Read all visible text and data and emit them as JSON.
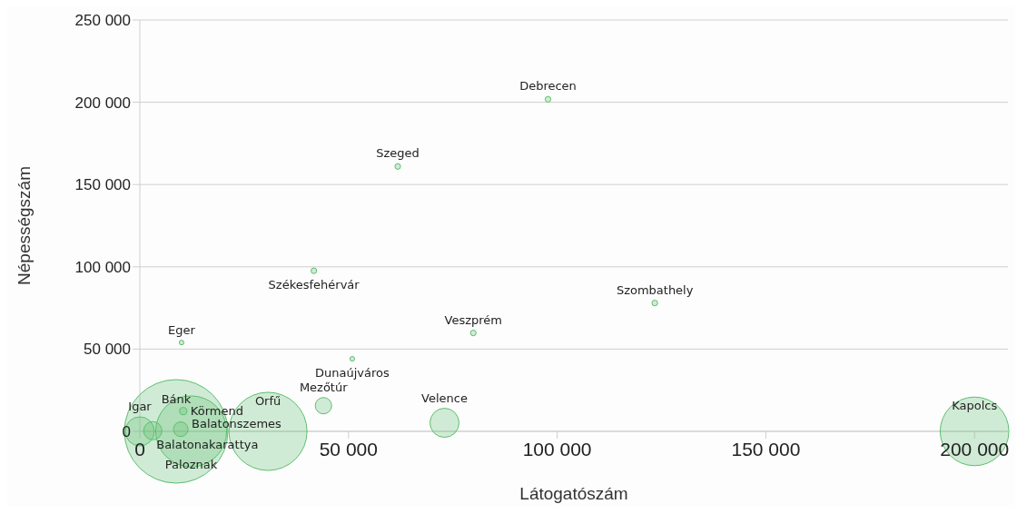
{
  "chart_data": {
    "type": "bubble",
    "xlabel": "Látogatószám",
    "ylabel": "Népességszám",
    "series": [
      {
        "color": "#5cbf6e",
        "x": [
          97800,
          61800,
          41700,
          10000,
          50900,
          79900,
          123400,
          200000,
          73000,
          44000,
          30700,
          8700,
          12300,
          10400,
          9800,
          3100,
          0
        ],
        "values": [
          201800,
          161000,
          97600,
          54000,
          44100,
          59800,
          78000,
          0,
          5200,
          15600,
          0,
          0,
          0,
          12300,
          1300,
          400,
          0
        ],
        "sizes": [
          0.003,
          0.003,
          0.003,
          0.002,
          0.002,
          0.003,
          0.003,
          0.44,
          0.079,
          0.025,
          0.57,
          1,
          0.47,
          0.005,
          0.02,
          0.031,
          0.079
        ]
      }
    ],
    "annotations": [
      {
        "text": "Debrecen",
        "x": 97800,
        "y": 201800
      },
      {
        "text": "Szeged",
        "x": 61800,
        "y": 161000
      },
      {
        "text": "Székesfehérvár",
        "x": 41700,
        "y": 97600
      },
      {
        "text": "Eger",
        "x": 10000,
        "y": 54000
      },
      {
        "text": "Dunaújváros",
        "x": 50900,
        "y": 44100
      },
      {
        "text": "Veszprém",
        "x": 79900,
        "y": 59800
      },
      {
        "text": "Szombathely",
        "x": 123400,
        "y": 78000
      },
      {
        "text": "Kapolcs",
        "x": 200000,
        "y": 0
      },
      {
        "text": "Velence",
        "x": 73000,
        "y": 5200
      },
      {
        "text": "Mezőtúr",
        "x": 44000,
        "y": 15600
      },
      {
        "text": "Orfű",
        "x": 30700,
        "y": 0
      },
      {
        "text": "Bánk",
        "x": 8700,
        "y": 0
      },
      {
        "text": "Paloznak",
        "x": 12300,
        "y": 0
      },
      {
        "text": "Körmend",
        "x": 10400,
        "y": 12300
      },
      {
        "text": "Balatonszemes",
        "x": 9800,
        "y": 1300
      },
      {
        "text": "Balatonakarattya",
        "x": 3100,
        "y": 400
      },
      {
        "text": "Igar",
        "x": 0,
        "y": 0
      }
    ],
    "xlim": [
      0,
      208000
    ],
    "xticks": [
      0,
      {
        "value": 50000,
        "label": "50 000"
      },
      {
        "value": 100000,
        "label": "100 000"
      },
      {
        "value": 150000,
        "label": "150 000"
      },
      {
        "value": 200000,
        "label": "200 000"
      }
    ],
    "ylim": [
      0,
      250000
    ],
    "yticks": [
      0,
      {
        "value": 50000,
        "label": "50 000"
      },
      {
        "value": 100000,
        "label": "100 000"
      },
      {
        "value": 150000,
        "label": "150 000"
      },
      {
        "value": 200000,
        "label": "200 000"
      },
      {
        "value": 250000,
        "label": "250 000"
      }
    ],
    "grid": "y",
    "legend": false,
    "marker": "circle"
  }
}
